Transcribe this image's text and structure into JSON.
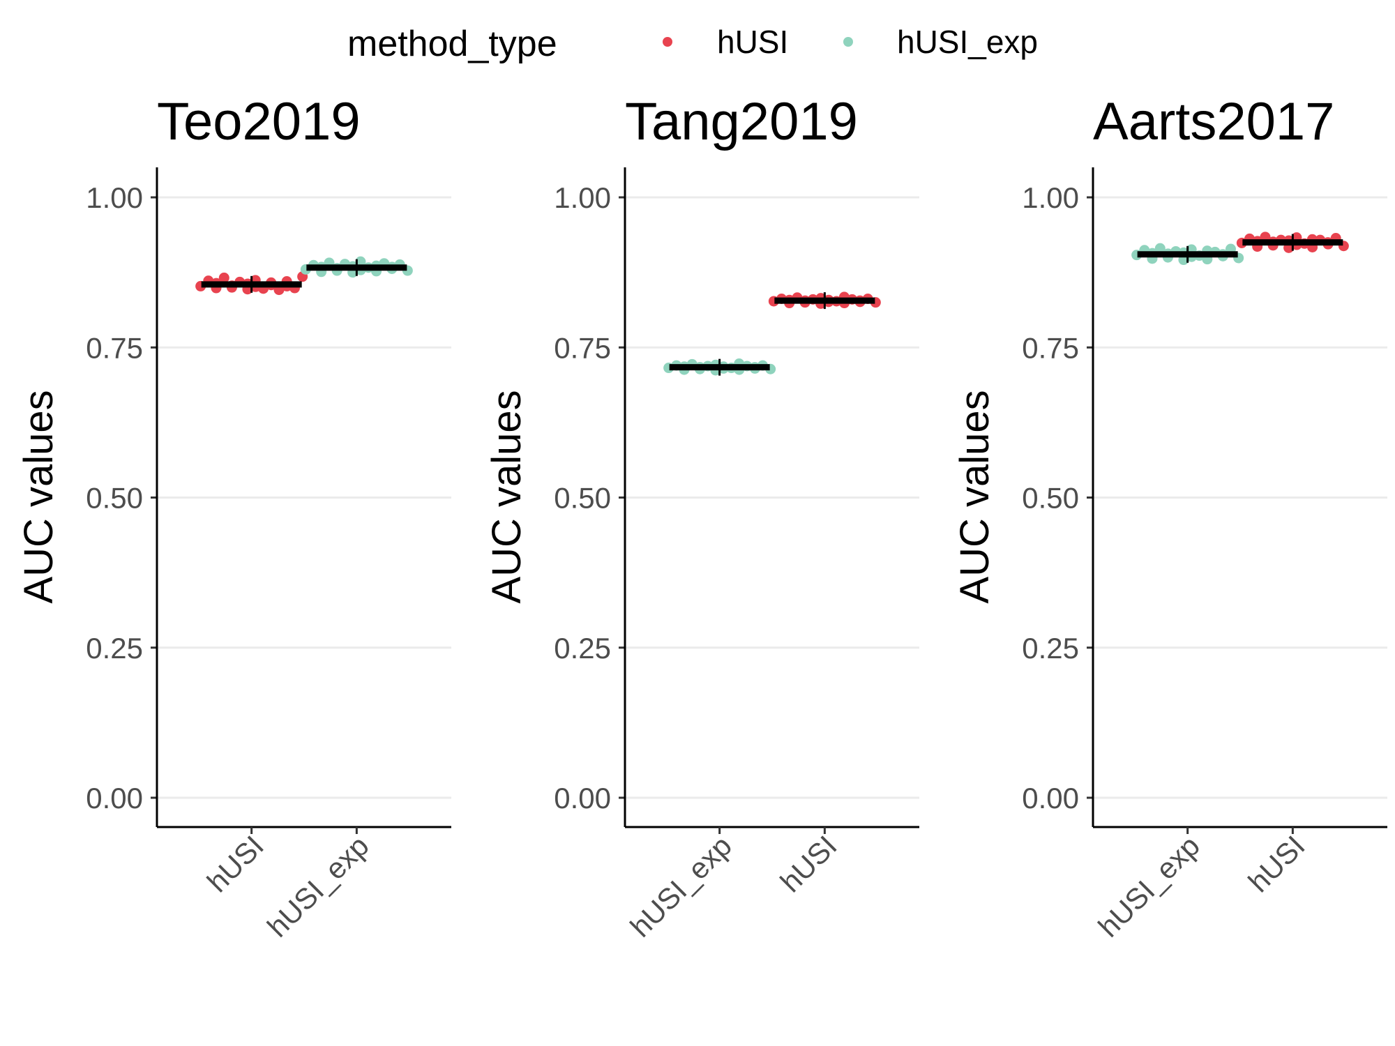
{
  "legend": {
    "title": "method_type",
    "entries": [
      {
        "label": "hUSI",
        "color": "#E8434F"
      },
      {
        "label": "hUSI_exp",
        "color": "#8FD3BD"
      }
    ]
  },
  "chart_data": [
    {
      "type": "scatter",
      "title": "Teo2019",
      "xlabel": "",
      "ylabel": "AUC values",
      "ylim": [
        0,
        1
      ],
      "yticks": [
        "0.00",
        "0.25",
        "0.50",
        "0.75",
        "1.00"
      ],
      "categories": [
        "hUSI",
        "hUSI_exp"
      ],
      "grid": "horizontal",
      "series": [
        {
          "name": "hUSI",
          "category": "hUSI",
          "mean": 0.855,
          "values": [
            0.852,
            0.861,
            0.849,
            0.857,
            0.866,
            0.85,
            0.853,
            0.859,
            0.847,
            0.856,
            0.862,
            0.851,
            0.848,
            0.858,
            0.854,
            0.846,
            0.86,
            0.852,
            0.849,
            0.868
          ]
        },
        {
          "name": "hUSI_exp",
          "category": "hUSI_exp",
          "mean": 0.883,
          "values": [
            0.88,
            0.887,
            0.876,
            0.884,
            0.891,
            0.878,
            0.882,
            0.889,
            0.875,
            0.885,
            0.893,
            0.879,
            0.883,
            0.886,
            0.877,
            0.89,
            0.881,
            0.884,
            0.888,
            0.878
          ]
        }
      ]
    },
    {
      "type": "scatter",
      "title": "Tang2019",
      "xlabel": "",
      "ylabel": "AUC values",
      "ylim": [
        0,
        1
      ],
      "yticks": [
        "0.00",
        "0.25",
        "0.50",
        "0.75",
        "1.00"
      ],
      "categories": [
        "hUSI_exp",
        "hUSI"
      ],
      "grid": "horizontal",
      "series": [
        {
          "name": "hUSI_exp",
          "category": "hUSI_exp",
          "mean": 0.717,
          "values": [
            0.716,
            0.72,
            0.713,
            0.718,
            0.722,
            0.714,
            0.717,
            0.719,
            0.712,
            0.721,
            0.715,
            0.718,
            0.716,
            0.723,
            0.713,
            0.719,
            0.717,
            0.715,
            0.72,
            0.714
          ]
        },
        {
          "name": "hUSI",
          "category": "hUSI",
          "mean": 0.828,
          "values": [
            0.827,
            0.831,
            0.824,
            0.829,
            0.833,
            0.825,
            0.828,
            0.83,
            0.823,
            0.832,
            0.826,
            0.829,
            0.827,
            0.834,
            0.824,
            0.83,
            0.828,
            0.826,
            0.831,
            0.825
          ]
        }
      ]
    },
    {
      "type": "scatter",
      "title": "Aarts2017",
      "xlabel": "",
      "ylabel": "AUC values",
      "ylim": [
        0,
        1
      ],
      "yticks": [
        "0.00",
        "0.25",
        "0.50",
        "0.75",
        "1.00"
      ],
      "categories": [
        "hUSI_exp",
        "hUSI"
      ],
      "grid": "horizontal",
      "series": [
        {
          "name": "hUSI_exp",
          "category": "hUSI_exp",
          "mean": 0.905,
          "values": [
            0.904,
            0.912,
            0.898,
            0.907,
            0.915,
            0.9,
            0.906,
            0.91,
            0.896,
            0.908,
            0.913,
            0.901,
            0.903,
            0.911,
            0.897,
            0.909,
            0.905,
            0.902,
            0.914,
            0.899
          ]
        },
        {
          "name": "hUSI",
          "category": "hUSI",
          "mean": 0.925,
          "values": [
            0.924,
            0.931,
            0.918,
            0.927,
            0.934,
            0.92,
            0.926,
            0.929,
            0.916,
            0.928,
            0.933,
            0.921,
            0.923,
            0.93,
            0.917,
            0.929,
            0.925,
            0.922,
            0.932,
            0.919
          ]
        }
      ]
    }
  ]
}
